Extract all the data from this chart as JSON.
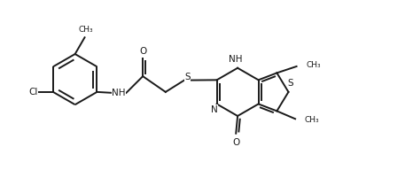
{
  "figsize": [
    4.66,
    1.92
  ],
  "dpi": 100,
  "bg": "#ffffff",
  "lc": "#1a1a1a",
  "lw": 1.4,
  "fs": 7.5,
  "xlim": [
    0,
    9.32
  ],
  "ylim": [
    0,
    3.84
  ]
}
